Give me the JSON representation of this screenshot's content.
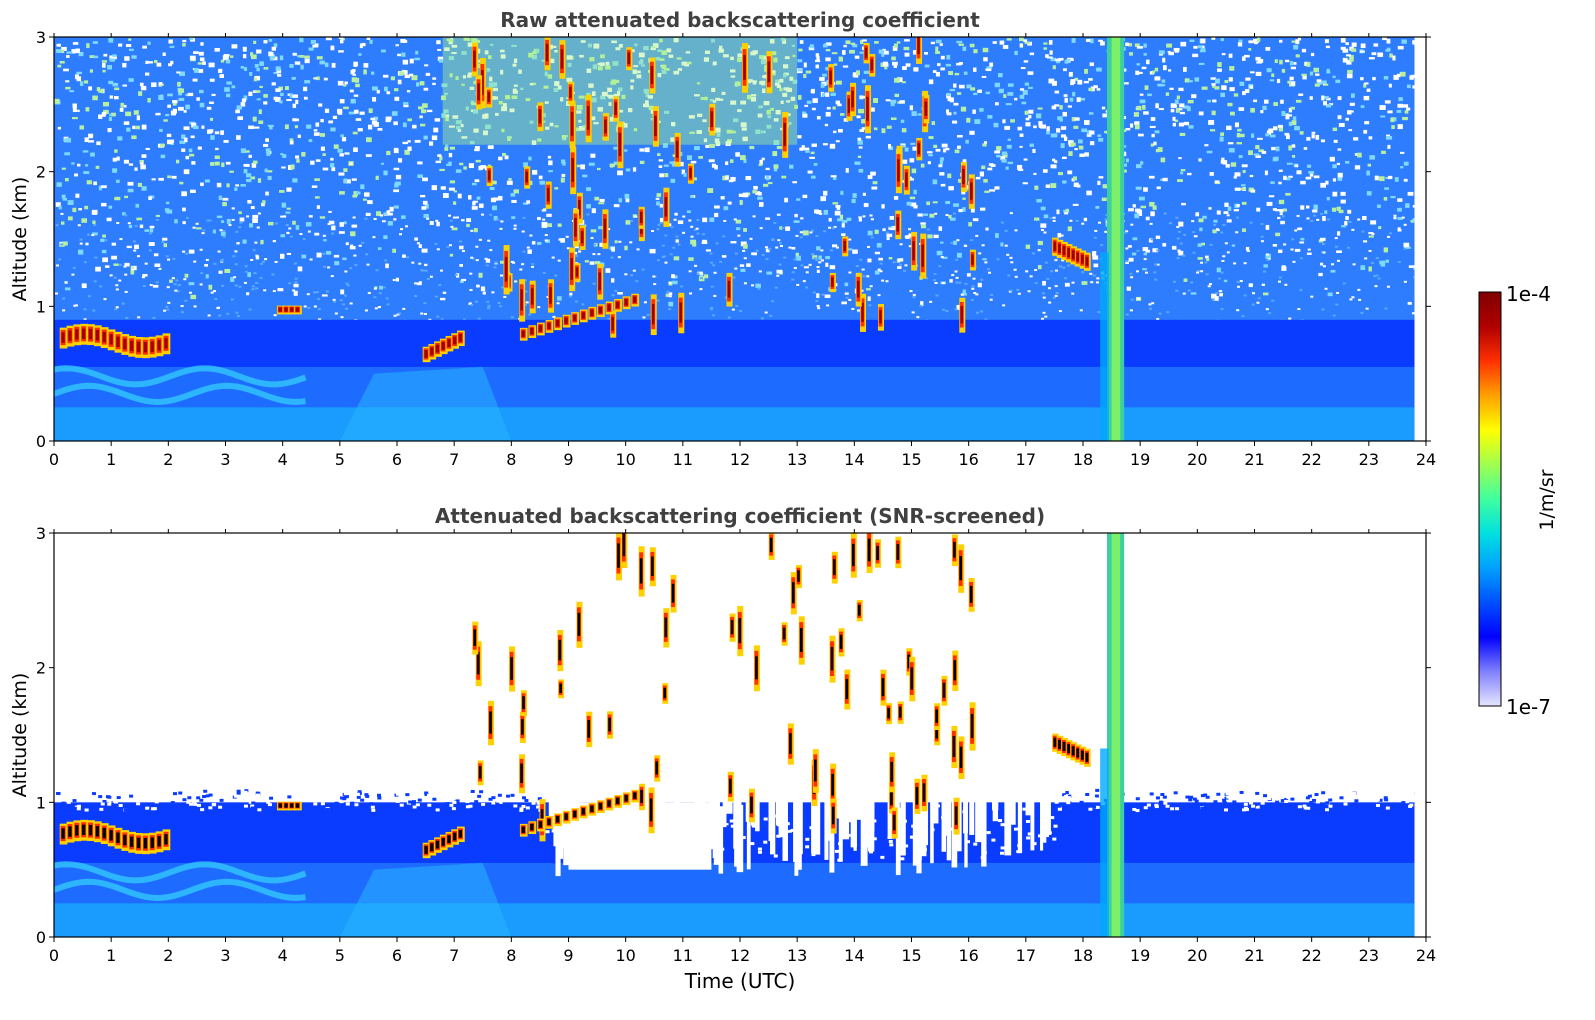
{
  "chart_data": [
    {
      "type": "heatmap",
      "title": "Raw attenuated backscattering coefficient",
      "xlabel": "",
      "ylabel": "Altitude (km)",
      "xlim": [
        0,
        24
      ],
      "ylim": [
        0,
        3
      ],
      "xticks": [
        "0",
        "1",
        "2",
        "3",
        "4",
        "5",
        "6",
        "7",
        "8",
        "9",
        "10",
        "11",
        "12",
        "13",
        "14",
        "15",
        "16",
        "17",
        "18",
        "19",
        "20",
        "21",
        "22",
        "23",
        "24"
      ],
      "yticks": [
        "0",
        "1",
        "2",
        "3"
      ],
      "data_end_time": 23.8,
      "layers": [
        {
          "name": "boundary layer aerosol",
          "start": 0,
          "end": 23.8,
          "top_km": 0.9
        },
        {
          "name": "low cloud",
          "start": 0.1,
          "end": 2.0,
          "base_km": 0.65,
          "top_km": 0.95
        },
        {
          "name": "cloud",
          "start": 3.9,
          "end": 4.3,
          "base_km": 0.95,
          "top_km": 1.02
        },
        {
          "name": "cloud",
          "start": 6.5,
          "end": 7.1,
          "base_km": 0.6,
          "top_km": 0.8
        },
        {
          "name": "scattered clouds",
          "start": 7.3,
          "end": 16.2,
          "base_km": 0.8,
          "top_km": 3.0
        },
        {
          "name": "cloud",
          "start": 17.5,
          "end": 18.1,
          "base_km": 1.3,
          "top_km": 1.6
        },
        {
          "name": "precipitation column",
          "start": 18.4,
          "end": 18.7,
          "base_km": 0,
          "top_km": 3.0
        }
      ]
    },
    {
      "type": "heatmap",
      "title": "Attenuated backscattering coefficient (SNR-screened)",
      "xlabel": "Time (UTC)",
      "ylabel": "Altitude (km)",
      "xlim": [
        0,
        24
      ],
      "ylim": [
        0,
        3
      ],
      "xticks": [
        "0",
        "1",
        "2",
        "3",
        "4",
        "5",
        "6",
        "7",
        "8",
        "9",
        "10",
        "11",
        "12",
        "13",
        "14",
        "15",
        "16",
        "17",
        "18",
        "19",
        "20",
        "21",
        "22",
        "23",
        "24"
      ],
      "yticks": [
        "0",
        "1",
        "2",
        "3"
      ],
      "data_end_time": 23.8,
      "layers": [
        {
          "name": "boundary layer aerosol",
          "start": 0,
          "end": 23.8,
          "top_km": 1.1
        },
        {
          "name": "low cloud",
          "start": 0.1,
          "end": 2.0,
          "base_km": 0.65,
          "top_km": 0.95
        },
        {
          "name": "scattered clouds",
          "start": 7.3,
          "end": 16.2,
          "base_km": 0.8,
          "top_km": 3.0
        },
        {
          "name": "cloud",
          "start": 17.5,
          "end": 18.1,
          "base_km": 1.3,
          "top_km": 1.6
        },
        {
          "name": "precipitation column",
          "start": 18.4,
          "end": 18.7,
          "base_km": 0,
          "top_km": 3.0
        }
      ]
    }
  ],
  "colorbar": {
    "label": "1/m/sr",
    "max_label": "1e-4",
    "min_label": "1e-7",
    "scale": "log",
    "range": [
      1e-07,
      0.0001
    ],
    "colors": [
      "#e6e6ff",
      "#8080ff",
      "#0000ff",
      "#0050ff",
      "#00a0ff",
      "#00e0e0",
      "#40ff9f",
      "#a0ff50",
      "#ffff00",
      "#ffa000",
      "#ff3000",
      "#b00000",
      "#800000"
    ]
  }
}
